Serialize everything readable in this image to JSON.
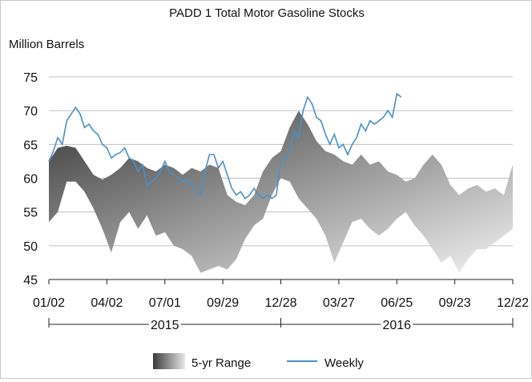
{
  "chart_data": {
    "type": "area",
    "title": "PADD 1 Total Motor Gasoline Stocks",
    "ylabel": "Million Barrels",
    "xlabel": "",
    "ylim": [
      45,
      75
    ],
    "yticks": [
      45,
      50,
      55,
      60,
      65,
      70,
      75
    ],
    "grid": "horizontal",
    "legend_position": "bottom",
    "xticks": [
      {
        "week": 0,
        "label": "01/02"
      },
      {
        "week": 13,
        "label": "04/02"
      },
      {
        "week": 26,
        "label": "07/01"
      },
      {
        "week": 39,
        "label": "09/29"
      },
      {
        "week": 52,
        "label": "12/28"
      },
      {
        "week": 65,
        "label": "03/27"
      },
      {
        "week": 78,
        "label": "06/25"
      },
      {
        "week": 91,
        "label": "09/23"
      },
      {
        "week": 104,
        "label": "12/22"
      }
    ],
    "year_groups": [
      {
        "label": "2015",
        "from_week": 0,
        "to_week": 52
      },
      {
        "label": "2016",
        "from_week": 52,
        "to_week": 104
      }
    ],
    "week_numbers": [
      0,
      2,
      4,
      6,
      8,
      10,
      12,
      14,
      16,
      18,
      20,
      22,
      24,
      26,
      28,
      30,
      32,
      34,
      36,
      38,
      40,
      42,
      44,
      46,
      48,
      50,
      52,
      54,
      56,
      58,
      60,
      62,
      64,
      66,
      68,
      70,
      72,
      74,
      76,
      78,
      80,
      82,
      84,
      86,
      88,
      90,
      92,
      94,
      96,
      98,
      100,
      102,
      104
    ],
    "series": [
      {
        "name": "5-yr Range",
        "color_dark": "#3a3a3a",
        "color_light": "#f2f2f2",
        "upper": [
          62.5,
          64.5,
          64.8,
          64.5,
          62.5,
          60.5,
          59.8,
          60.5,
          61.5,
          63.0,
          62.5,
          61.5,
          61.0,
          62.0,
          61.5,
          60.5,
          61.5,
          61.0,
          62.0,
          61.5,
          57.5,
          56.5,
          56.0,
          57.5,
          61.0,
          63.0,
          64.0,
          67.5,
          70.0,
          68.0,
          65.5,
          64.0,
          63.5,
          62.5,
          62.0,
          63.5,
          62.0,
          62.5,
          61.0,
          60.5,
          59.5,
          60.0,
          62.0,
          63.5,
          62.0,
          59.0,
          57.5,
          58.5,
          59.0,
          58.0,
          58.5,
          57.5,
          62.0
        ],
        "lower": [
          53.5,
          55.0,
          59.5,
          59.5,
          58.0,
          55.5,
          52.5,
          49.0,
          53.5,
          55.0,
          52.5,
          54.5,
          51.5,
          52.0,
          50.0,
          49.5,
          48.5,
          46.0,
          46.5,
          47.0,
          46.5,
          48.0,
          51.0,
          53.0,
          54.0,
          57.5,
          60.0,
          59.5,
          57.0,
          55.5,
          54.0,
          51.5,
          47.5,
          50.5,
          53.5,
          54.0,
          52.5,
          51.5,
          52.5,
          54.0,
          55.0,
          53.0,
          51.5,
          49.5,
          47.5,
          48.5,
          46.0,
          48.0,
          49.5,
          49.5,
          50.5,
          51.5,
          52.5
        ]
      },
      {
        "name": "Weekly",
        "color": "#4a90c8",
        "week_numbers": [
          0,
          1,
          2,
          3,
          4,
          5,
          6,
          7,
          8,
          9,
          10,
          11,
          12,
          13,
          14,
          15,
          16,
          17,
          18,
          19,
          20,
          21,
          22,
          23,
          24,
          25,
          26,
          27,
          28,
          29,
          30,
          31,
          32,
          33,
          34,
          35,
          36,
          37,
          38,
          39,
          40,
          41,
          42,
          43,
          44,
          45,
          46,
          47,
          48,
          49,
          50,
          51,
          52,
          53,
          54,
          55,
          56,
          57,
          58,
          59,
          60,
          61,
          62,
          63,
          64,
          65,
          66,
          67,
          68,
          69,
          70,
          71,
          72,
          73,
          74,
          75,
          76,
          77,
          78,
          79
        ],
        "values": [
          62.5,
          64.0,
          66.0,
          65.0,
          68.5,
          69.5,
          70.5,
          69.5,
          67.5,
          68.0,
          67.0,
          66.5,
          65.0,
          64.5,
          63.0,
          63.5,
          63.8,
          64.5,
          63.0,
          62.5,
          61.0,
          62.0,
          59.0,
          59.5,
          60.0,
          61.0,
          62.5,
          61.0,
          60.5,
          60.0,
          59.5,
          59.8,
          59.0,
          58.0,
          57.5,
          61.0,
          63.5,
          63.5,
          61.5,
          62.5,
          60.5,
          58.5,
          57.5,
          58.0,
          57.0,
          57.5,
          58.5,
          57.5,
          57.0,
          57.5,
          57.0,
          57.5,
          62.5,
          63.0,
          64.0,
          67.0,
          66.0,
          70.0,
          72.0,
          71.0,
          69.0,
          68.5,
          66.5,
          65.0,
          66.5,
          64.5,
          65.0,
          63.5,
          65.0,
          66.0,
          68.0,
          67.0,
          68.5,
          68.0,
          68.5,
          69.0,
          70.0,
          69.0,
          72.5,
          72.0
        ]
      }
    ]
  }
}
